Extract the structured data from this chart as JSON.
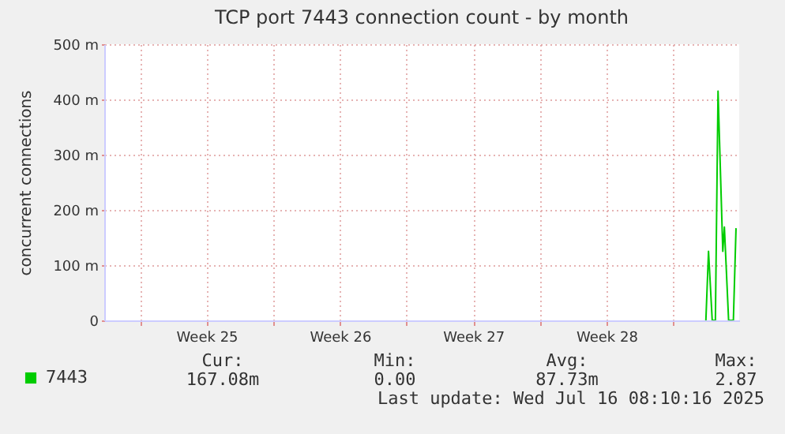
{
  "chart_data": {
    "type": "line",
    "title": "TCP port 7443 connection count - by month",
    "ylabel": "concurrent connections",
    "xlim": [
      "2025-06-13T03:00",
      "2025-07-16T11:20"
    ],
    "xticks": [
      {
        "value": "2025-06-15T00:00",
        "label": null
      },
      {
        "value": "2025-06-18T12:00",
        "label": "Week 25"
      },
      {
        "value": "2025-06-22T00:00",
        "label": null
      },
      {
        "value": "2025-06-25T12:00",
        "label": "Week 26"
      },
      {
        "value": "2025-06-29T00:00",
        "label": null
      },
      {
        "value": "2025-07-02T12:00",
        "label": "Week 27"
      },
      {
        "value": "2025-07-06T00:00",
        "label": null
      },
      {
        "value": "2025-07-09T12:00",
        "label": "Week 28"
      },
      {
        "value": "2025-07-13T00:00",
        "label": null
      }
    ],
    "ylim": [
      0,
      500
    ],
    "yticks": [
      {
        "value": 0,
        "label": "0"
      },
      {
        "value": 100,
        "label": "100 m"
      },
      {
        "value": 200,
        "label": "200 m"
      },
      {
        "value": 300,
        "label": "300 m"
      },
      {
        "value": 400,
        "label": "400 m"
      },
      {
        "value": 500,
        "label": "500 m"
      }
    ],
    "x": [
      "2025-07-14T17:20",
      "2025-07-14T20:40",
      "2025-07-15T01:20",
      "2025-07-15T05:20",
      "2025-07-15T08:40",
      "2025-07-15T14:40",
      "2025-07-15T16:40",
      "2025-07-15T22:00",
      "2025-07-16T04:00",
      "2025-07-16T07:20"
    ],
    "series": [
      {
        "name": "7443",
        "color": "#00cc00",
        "values": [
          0,
          125,
          0,
          0,
          415,
          125,
          169,
          0,
          0,
          167
        ]
      }
    ],
    "grid": true,
    "legend": "bottom left",
    "annotations": [
      "Cur:",
      "167.08m",
      "Min:",
      "0.00",
      "Avg:",
      "87.73m",
      "Max:",
      "2.87",
      "Last update: Wed Jul 16 08:10:16 2025"
    ]
  }
}
